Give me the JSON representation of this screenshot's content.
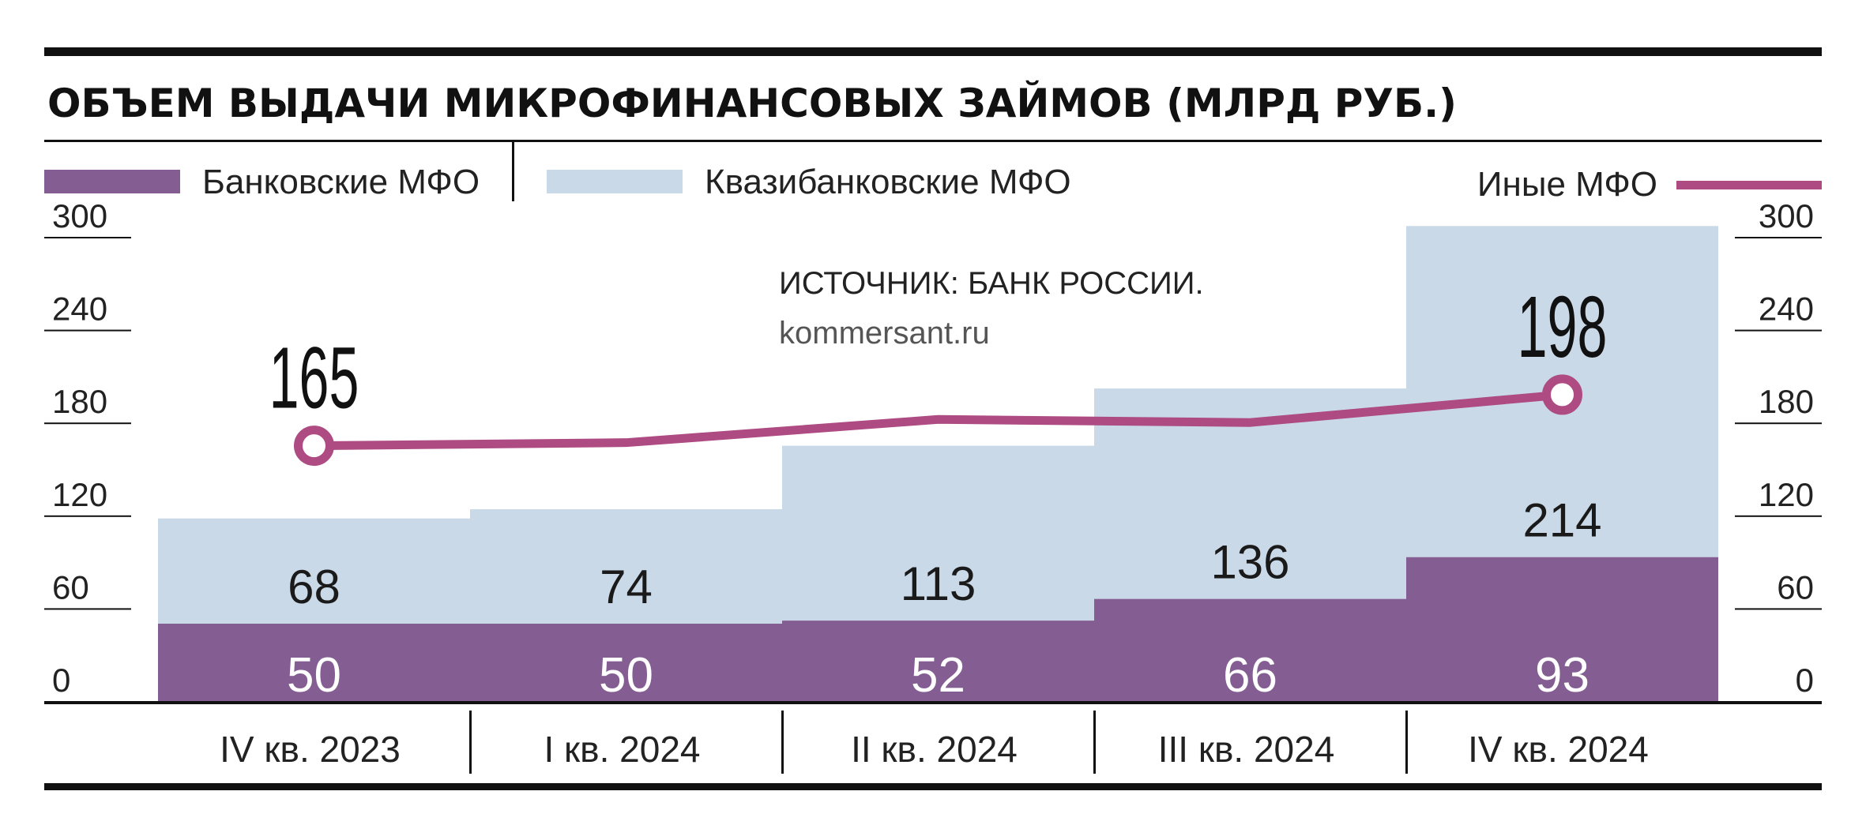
{
  "colors": {
    "bank": "#845e92",
    "quasi": "#c9d9e8",
    "other": "#ad4b82",
    "rule": "#111111"
  },
  "chart_data": {
    "type": "bar",
    "title": "ОБЪЕМ ВЫДАЧИ МИКРОФИНАНСОВЫХ ЗАЙМОВ (МЛРД РУБ.)",
    "source": "ИСТОЧНИК: БАНК РОССИИ.",
    "site": "kommersant.ru",
    "categories": [
      "IV кв. 2023",
      "I кв. 2024",
      "II кв. 2024",
      "III кв. 2024",
      "IV кв. 2024"
    ],
    "stacked": true,
    "series": [
      {
        "name": "Банковские МФО",
        "type": "bar",
        "values": [
          50,
          50,
          52,
          66,
          93
        ]
      },
      {
        "name": "Квазибанковские МФО",
        "type": "bar",
        "values": [
          68,
          74,
          113,
          136,
          214
        ]
      },
      {
        "name": "Иные МФО",
        "type": "line",
        "values": [
          165,
          167,
          182,
          180,
          198
        ]
      }
    ],
    "line_labels": [
      {
        "index": 0,
        "text": "165"
      },
      {
        "index": 4,
        "text": "198"
      }
    ],
    "y_ticks": [
      "0",
      "60",
      "120",
      "180",
      "240",
      "300"
    ],
    "ylim": [
      0,
      300
    ],
    "grid": false,
    "legend_position": "top"
  }
}
